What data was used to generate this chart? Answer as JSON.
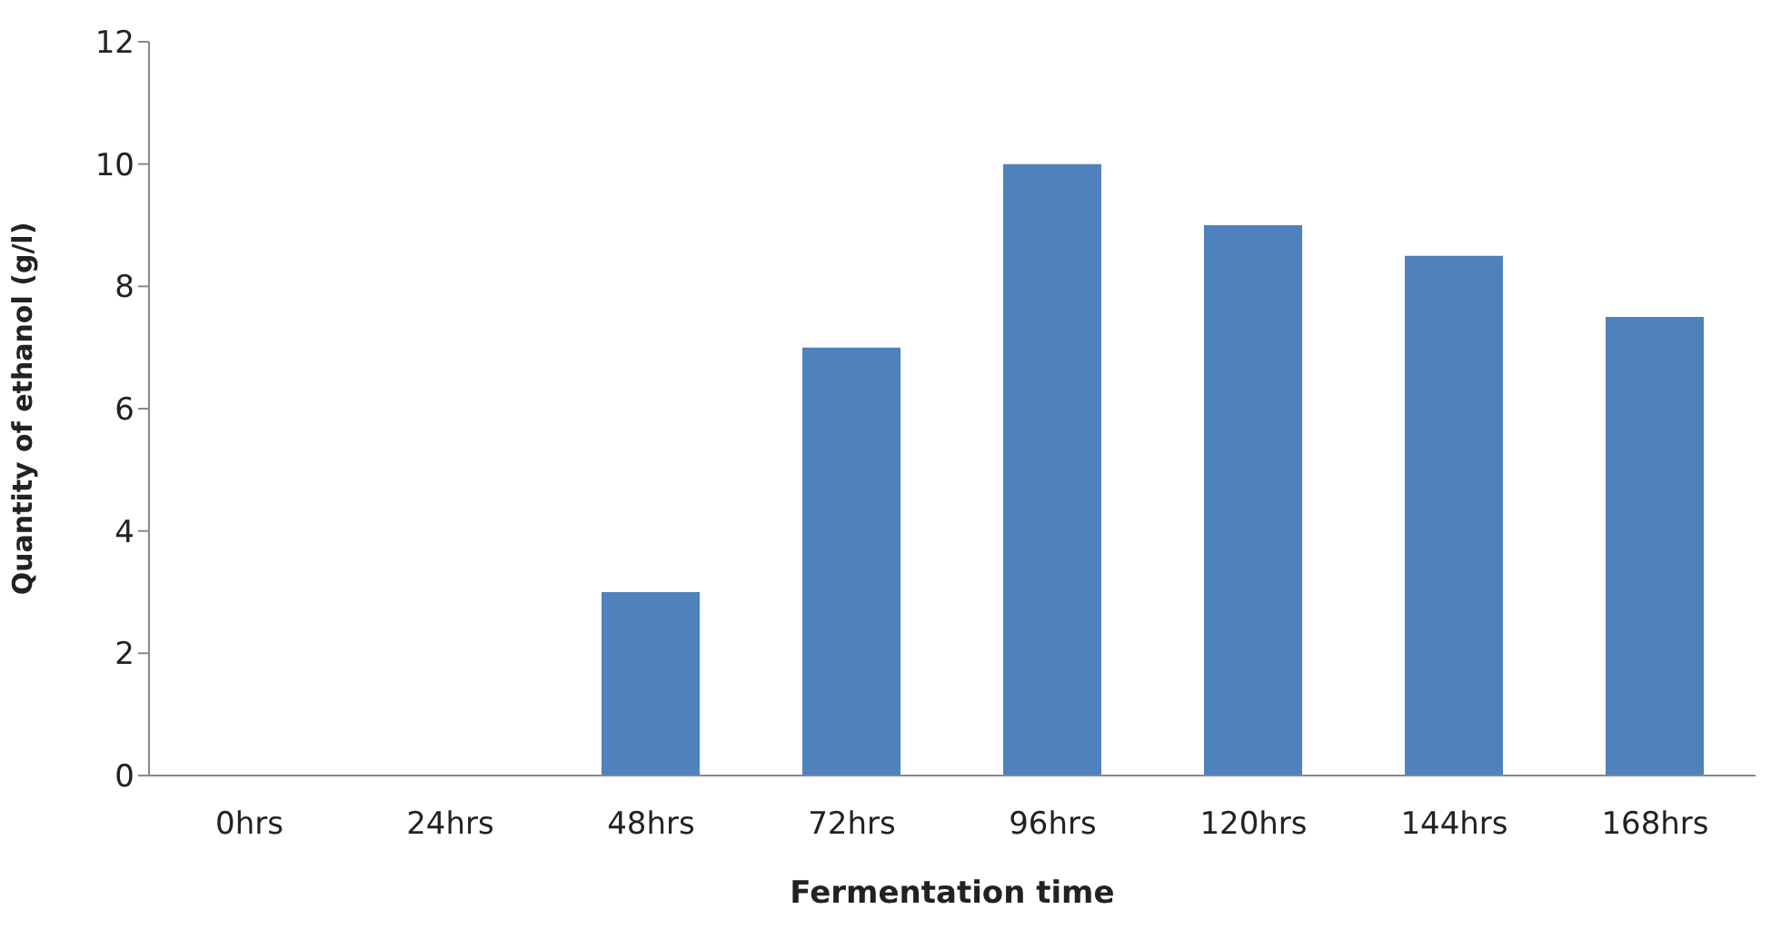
{
  "chart_data": {
    "type": "bar",
    "xlabel": "Fermentation time",
    "ylabel": "Quantity of ethanol (g/l)",
    "categories": [
      "0hrs",
      "24hrs",
      "48hrs",
      "72hrs",
      "96hrs",
      "120hrs",
      "144hrs",
      "168hrs"
    ],
    "values": [
      0,
      0,
      3,
      7,
      10,
      9,
      8.5,
      7.5
    ],
    "color": "#4f81bd",
    "ylim": [
      0,
      12
    ],
    "yticks": [
      0,
      2,
      4,
      6,
      8,
      10,
      12
    ],
    "grid": false
  }
}
